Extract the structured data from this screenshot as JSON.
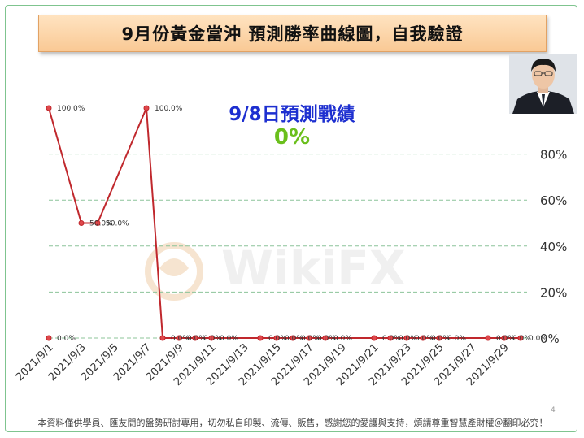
{
  "title": "9月份黃金當沖 預測勝率曲線圖，自我驗證",
  "headline": "9/8日預測戰績",
  "score": "0%",
  "watermark": "WikiFX",
  "footer": "本資料僅供學員、匯友間的盤勢研討專用，切勿私自印製、流傳、販售，感謝您的愛護與支持，煩請尊重智慧產財權＠翻印必究！",
  "page_number": "4",
  "colors": {
    "line": "#c0282d",
    "marker": "#e0484c",
    "headline": "#1d2fd0",
    "score": "#6abf1c",
    "grid": "#8cc49a"
  },
  "chart_data": {
    "type": "line",
    "x": [
      "2021/9/1",
      "2021/9/2",
      "2021/9/3",
      "2021/9/4",
      "2021/9/5",
      "2021/9/6",
      "2021/9/7",
      "2021/9/8",
      "2021/9/9",
      "2021/9/10",
      "2021/9/11",
      "2021/9/12",
      "2021/9/13",
      "2021/9/14",
      "2021/9/15",
      "2021/9/16",
      "2021/9/17",
      "2021/9/18",
      "2021/9/19",
      "2021/9/20",
      "2021/9/21",
      "2021/9/22",
      "2021/9/23",
      "2021/9/24",
      "2021/9/25",
      "2021/9/26",
      "2021/9/27",
      "2021/9/28",
      "2021/9/29",
      "2021/9/30"
    ],
    "x_tick_labels": [
      "2021/9/1",
      "2021/9/3",
      "2021/9/5",
      "2021/9/7",
      "2021/9/9",
      "2021/9/11",
      "2021/9/13",
      "2021/9/15",
      "2021/9/17",
      "2021/9/19",
      "2021/9/21",
      "2021/9/23",
      "2021/9/25",
      "2021/9/27",
      "2021/9/29"
    ],
    "series": [
      {
        "points": [
          {
            "x": "2021/9/1",
            "y": 100,
            "label": "100.0%"
          },
          {
            "x": "2021/9/3",
            "y": 50,
            "label": "50.0%"
          },
          {
            "x": "2021/9/4",
            "y": 50,
            "label": "50.0%"
          },
          {
            "x": "2021/9/7",
            "y": 100,
            "label": "100.0%"
          },
          {
            "x": "2021/9/8",
            "y": 0,
            "label": "0.0%"
          },
          {
            "x": "2021/9/9",
            "y": 0,
            "label": "0.0%"
          },
          {
            "x": "2021/9/10",
            "y": 0,
            "label": "0.0%"
          },
          {
            "x": "2021/9/11",
            "y": 0,
            "label": "0.0%"
          },
          {
            "x": "2021/9/14",
            "y": 0,
            "label": "0.0%"
          },
          {
            "x": "2021/9/15",
            "y": 0,
            "label": "0.0%"
          },
          {
            "x": "2021/9/16",
            "y": 0,
            "label": "0.0%"
          },
          {
            "x": "2021/9/17",
            "y": 0,
            "label": "0.0%"
          },
          {
            "x": "2021/9/18",
            "y": 0,
            "label": "0.0%"
          },
          {
            "x": "2021/9/21",
            "y": 0,
            "label": "0.0%"
          },
          {
            "x": "2021/9/22",
            "y": 0,
            "label": "0.0%"
          },
          {
            "x": "2021/9/23",
            "y": 0,
            "label": "0.0%"
          },
          {
            "x": "2021/9/24",
            "y": 0,
            "label": "0.0%"
          },
          {
            "x": "2021/9/25",
            "y": 0,
            "label": "0.0%"
          },
          {
            "x": "2021/9/28",
            "y": 0,
            "label": "0.0%"
          },
          {
            "x": "2021/9/29",
            "y": 0,
            "label": "0.0%"
          },
          {
            "x": "2021/9/30",
            "y": 0,
            "label": "0.0%"
          }
        ]
      },
      {
        "points": [
          {
            "x": "2021/9/1",
            "y": 0,
            "label": "0.0%"
          }
        ]
      }
    ],
    "y_ticks": [
      0,
      20,
      40,
      60,
      80
    ],
    "y_tick_labels": [
      "0%",
      "20%",
      "40%",
      "60%",
      "80%"
    ],
    "ylim": [
      0,
      100
    ],
    "grid": true
  }
}
